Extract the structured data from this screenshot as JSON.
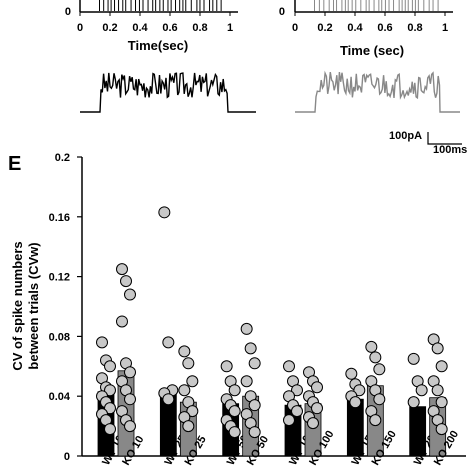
{
  "top_panels": {
    "left": {
      "y_tick": "0",
      "x_ticks": [
        "0",
        "0.2",
        "0.4",
        "0.6",
        "0.8",
        "1"
      ],
      "x_label": "Time(sec)",
      "color": "#000000"
    },
    "right": {
      "y_tick": "0",
      "x_ticks": [
        "0",
        "0.2",
        "0.4",
        "0.6",
        "0.8",
        "1"
      ],
      "x_label": "Time (sec)",
      "color": "#888888"
    },
    "scale_bar": {
      "current": "100pA",
      "time": "100ms"
    }
  },
  "panel_label": "E",
  "chart_data": {
    "type": "bar",
    "ylabel": "CV  of spike numbers between trials (CVw)",
    "ylim": [
      0,
      0.2
    ],
    "y_ticks": [
      "0",
      "0.04",
      "0.08",
      "0.12",
      "0.16",
      "0.2"
    ],
    "colors": {
      "wt": "#000000",
      "ko": "#888888",
      "dot_fill": "#c8c8c8"
    },
    "categories": [
      "WT 10",
      "KO 10",
      "WT 25",
      "KO 25",
      "WT 50",
      "KO 50",
      "WT 100",
      "KO 100",
      "WT 150",
      "KO 150",
      "WT 200",
      "KO 200"
    ],
    "x_tick_labels": [
      "WT 10",
      "KO 10",
      "WT 25",
      "KO 25",
      "WT 50",
      "KO 50",
      "WT 100",
      "KO 100",
      "WT 150",
      "KO 150",
      "WT 200",
      "KO 200"
    ],
    "series": [
      {
        "values": [
          0.043,
          0.057,
          0.042,
          0.036,
          0.035,
          0.04,
          0.034,
          0.035,
          0.038,
          0.047,
          0.033,
          0.039
        ]
      }
    ],
    "points": [
      [
        0.076,
        0.064,
        0.06,
        0.052,
        0.046,
        0.044,
        0.04,
        0.036,
        0.032,
        0.028,
        0.024,
        0.018
      ],
      [
        0.125,
        0.117,
        0.108,
        0.09,
        0.062,
        0.056,
        0.05,
        0.044,
        0.038,
        0.03,
        0.024,
        0.02
      ],
      [
        0.163,
        0.076,
        0.044,
        0.042,
        0.038
      ],
      [
        0.07,
        0.062,
        0.05,
        0.044,
        0.036,
        0.03,
        0.026,
        0.02
      ],
      [
        0.06,
        0.05,
        0.044,
        0.038,
        0.034,
        0.03,
        0.024,
        0.02,
        0.016
      ],
      [
        0.085,
        0.072,
        0.062,
        0.05,
        0.04,
        0.034,
        0.028,
        0.022,
        0.016
      ],
      [
        0.06,
        0.05,
        0.044,
        0.04,
        0.034,
        0.03,
        0.024
      ],
      [
        0.056,
        0.05,
        0.046,
        0.04,
        0.036,
        0.032,
        0.026,
        0.022
      ],
      [
        0.055,
        0.048,
        0.044,
        0.04,
        0.036
      ],
      [
        0.073,
        0.066,
        0.058,
        0.05,
        0.044,
        0.038,
        0.03,
        0.024
      ],
      [
        0.065,
        0.05,
        0.044,
        0.036
      ],
      [
        0.078,
        0.072,
        0.06,
        0.05,
        0.044,
        0.036,
        0.03,
        0.024,
        0.018
      ]
    ]
  }
}
